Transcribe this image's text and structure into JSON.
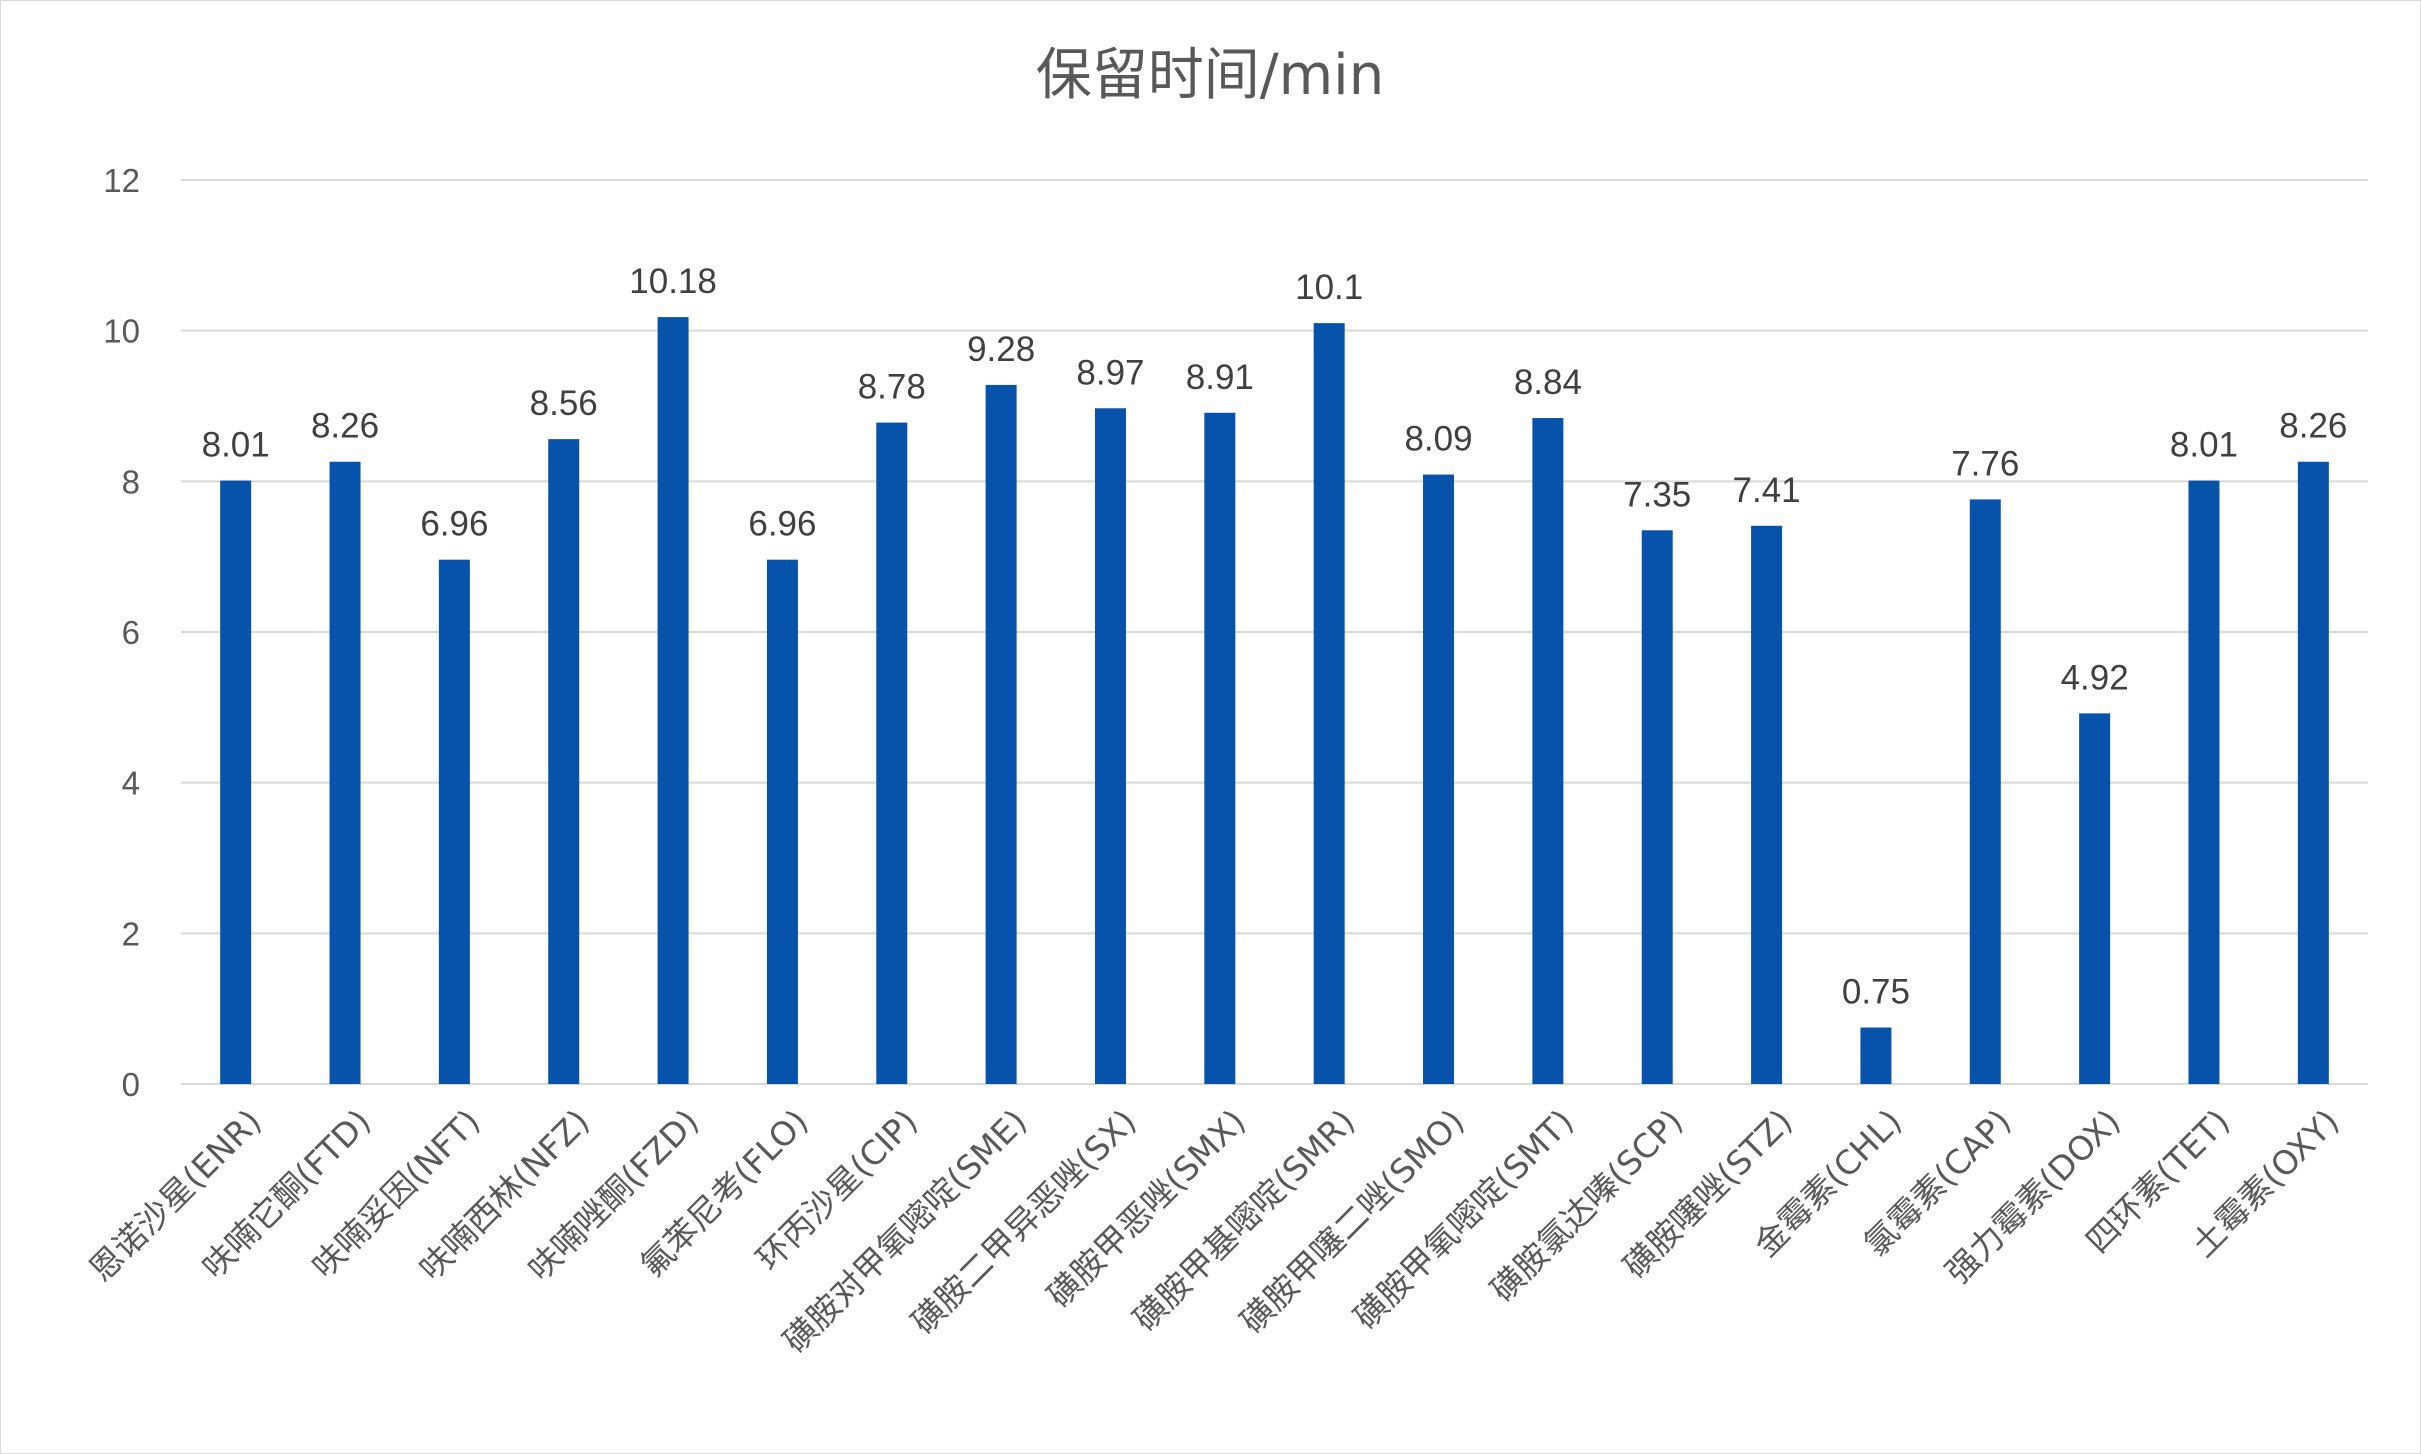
{
  "chart_data": {
    "type": "bar",
    "title": "保留时间/min",
    "xlabel": "",
    "ylabel": "",
    "ylim": [
      0,
      12
    ],
    "yticks": [
      0,
      2,
      4,
      6,
      8,
      10,
      12
    ],
    "grid": true,
    "legend": "none",
    "bar_color": "#0753AB",
    "categories": [
      "恩诺沙星(ENR)",
      "呋喃它酮(FTD)",
      "呋喃妥因(NFT)",
      "呋喃西林(NFZ)",
      "呋喃唑酮(FZD)",
      "氟苯尼考(FLO)",
      "环丙沙星(CIP)",
      "磺胺对甲氧嘧啶(SME)",
      "磺胺二甲异恶唑(SX)",
      "磺胺甲恶唑(SMX)",
      "磺胺甲基嘧啶(SMR)",
      "磺胺甲噻二唑(SMO)",
      "磺胺甲氧嘧啶(SMT)",
      "磺胺氯达嗪(SCP)",
      "磺胺噻唑(STZ)",
      "金霉素(CHL)",
      "氯霉素(CAP)",
      "强力霉素(DOX)",
      "四环素(TET)",
      "土霉素(OXY)"
    ],
    "values": [
      8.01,
      8.26,
      6.96,
      8.56,
      10.18,
      6.96,
      8.78,
      9.28,
      8.97,
      8.91,
      10.1,
      8.09,
      8.84,
      7.35,
      7.41,
      0.75,
      7.76,
      4.92,
      8.01,
      8.26
    ]
  }
}
